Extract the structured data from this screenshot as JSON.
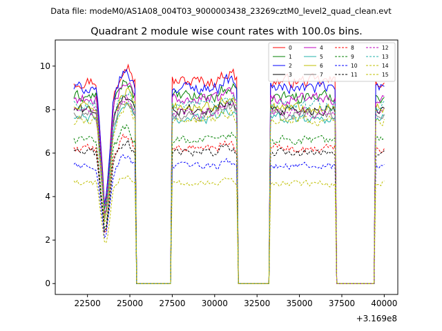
{
  "chart_data": {
    "type": "line",
    "suptitle": "Data file: modeM0/AS1A08_004T03_9000003438_23269cztM0_level2_quad_clean.evt",
    "title": "Quadrant 2 module wise count rates with 100.0s bins.",
    "xlabel": "",
    "ylabel": "",
    "offset_text": "+3.169e8",
    "xlim": [
      20600,
      40800
    ],
    "ylim": [
      -0.5,
      11.2
    ],
    "x_ticks": [
      22500,
      25000,
      27500,
      30000,
      32500,
      35000,
      37500,
      40000
    ],
    "x_tick_labels": [
      "22500",
      "25000",
      "27500",
      "30000",
      "32500",
      "35000",
      "37500",
      "40000"
    ],
    "y_ticks": [
      0,
      2,
      4,
      6,
      8,
      10
    ],
    "y_tick_labels": [
      "0",
      "2",
      "4",
      "6",
      "8",
      "10"
    ],
    "grid": false,
    "legend_location": "top-right",
    "segments": [
      {
        "start": 21700,
        "end": 25300
      },
      {
        "start": 27500,
        "end": 31300
      },
      {
        "start": 33300,
        "end": 37100
      },
      {
        "start": 39500,
        "end": 40000
      }
    ],
    "dip": {
      "start": 23000,
      "end": 24000,
      "min_x": 23500,
      "min_ratio": 0.3
    },
    "series": [
      {
        "name": "0",
        "color": "#ff0000",
        "dashed": false,
        "level": 9.3
      },
      {
        "name": "1",
        "color": "#008000",
        "dashed": false,
        "level": 8.6
      },
      {
        "name": "2",
        "color": "#0000ff",
        "dashed": false,
        "level": 9.0
      },
      {
        "name": "3",
        "color": "#000000",
        "dashed": false,
        "level": 8.0
      },
      {
        "name": "4",
        "color": "#bf00bf",
        "dashed": false,
        "level": 8.5
      },
      {
        "name": "5",
        "color": "#20b2aa",
        "dashed": false,
        "level": 7.6
      },
      {
        "name": "6",
        "color": "#bfbf00",
        "dashed": false,
        "level": 8.1
      },
      {
        "name": "7",
        "color": "#808080",
        "dashed": false,
        "level": 7.8
      },
      {
        "name": "8",
        "color": "#ff0000",
        "dashed": true,
        "level": 6.2
      },
      {
        "name": "9",
        "color": "#008000",
        "dashed": true,
        "level": 6.6
      },
      {
        "name": "10",
        "color": "#0000ff",
        "dashed": true,
        "level": 5.4
      },
      {
        "name": "11",
        "color": "#000000",
        "dashed": true,
        "level": 6.0
      },
      {
        "name": "12",
        "color": "#bf00bf",
        "dashed": true,
        "level": 7.9
      },
      {
        "name": "13",
        "color": "#20b2aa",
        "dashed": true,
        "level": 8.2
      },
      {
        "name": "14",
        "color": "#bfbf00",
        "dashed": true,
        "level": 4.6
      },
      {
        "name": "15",
        "color": "#bfbf00",
        "dashed": true,
        "level": 7.5
      }
    ]
  }
}
